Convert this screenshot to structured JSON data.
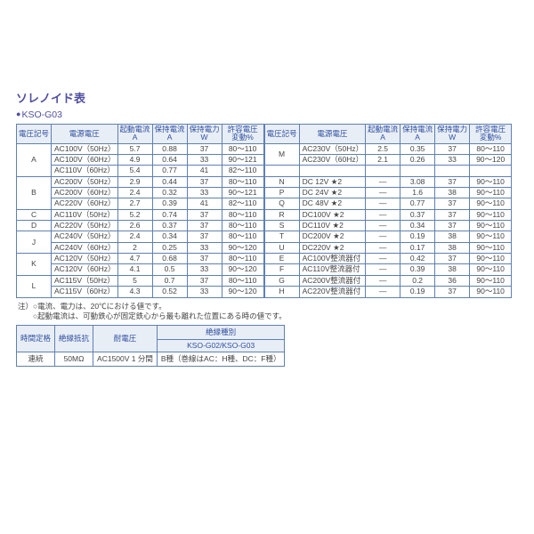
{
  "title": "ソレノイド表",
  "model": "KSO-G03",
  "headers": {
    "code": "電圧記号",
    "src": "電源電圧",
    "start": "起動電流\nA",
    "hold": "保持電流\nA",
    "power": "保持電力\nW",
    "range": "許容電圧\n変動%"
  },
  "left_rows": [
    {
      "code": "A",
      "span": 3,
      "src": "AC100V（50Hz）",
      "start": "5.7",
      "hold": "0.88",
      "power": "37",
      "range": "80～110"
    },
    {
      "src": "AC100V（60Hz）",
      "start": "4.9",
      "hold": "0.64",
      "power": "33",
      "range": "90～121"
    },
    {
      "src": "AC110V（60Hz）",
      "start": "5.4",
      "hold": "0.77",
      "power": "41",
      "range": "82～110"
    },
    {
      "code": "B",
      "span": 3,
      "src": "AC200V（50Hz）",
      "start": "2.9",
      "hold": "0.44",
      "power": "37",
      "range": "80～110"
    },
    {
      "src": "AC200V（60Hz）",
      "start": "2.4",
      "hold": "0.32",
      "power": "33",
      "range": "90～121"
    },
    {
      "src": "AC220V（60Hz）",
      "start": "2.7",
      "hold": "0.39",
      "power": "41",
      "range": "82～110"
    },
    {
      "code": "C",
      "span": 1,
      "src": "AC110V（50Hz）",
      "start": "5.2",
      "hold": "0.74",
      "power": "37",
      "range": "80～110"
    },
    {
      "code": "D",
      "span": 1,
      "src": "AC220V（50Hz）",
      "start": "2.6",
      "hold": "0.37",
      "power": "37",
      "range": "80～110"
    },
    {
      "code": "J",
      "span": 2,
      "src": "AC240V（50Hz）",
      "start": "2.4",
      "hold": "0.34",
      "power": "37",
      "range": "80～110"
    },
    {
      "src": "AC240V（60Hz）",
      "start": "2",
      "hold": "0.25",
      "power": "33",
      "range": "90～120"
    },
    {
      "code": "K",
      "span": 2,
      "src": "AC120V（50Hz）",
      "start": "4.7",
      "hold": "0.68",
      "power": "37",
      "range": "80～110"
    },
    {
      "src": "AC120V（60Hz）",
      "start": "4.1",
      "hold": "0.5",
      "power": "33",
      "range": "90～120"
    },
    {
      "code": "L",
      "span": 2,
      "src": "AC115V（50Hz）",
      "start": "5",
      "hold": "0.7",
      "power": "37",
      "range": "80～110"
    },
    {
      "src": "AC115V（60Hz）",
      "start": "4.3",
      "hold": "0.52",
      "power": "33",
      "range": "90～120"
    }
  ],
  "right_rows": [
    {
      "code": "M",
      "span": 2,
      "src": "AC230V（50Hz）",
      "start": "2.5",
      "hold": "0.35",
      "power": "37",
      "range": "80～110"
    },
    {
      "src": "AC230V（60Hz）",
      "start": "2.1",
      "hold": "0.26",
      "power": "33",
      "range": "90～120"
    },
    {
      "blank": true
    },
    {
      "code": "N",
      "span": 1,
      "src": "DC 12V ★2",
      "start": "—",
      "hold": "3.08",
      "power": "37",
      "range": "90～110"
    },
    {
      "code": "P",
      "span": 1,
      "src": "DC 24V ★2",
      "start": "—",
      "hold": "1.6",
      "power": "38",
      "range": "90～110"
    },
    {
      "code": "Q",
      "span": 1,
      "src": "DC 48V ★2",
      "start": "—",
      "hold": "0.77",
      "power": "37",
      "range": "90～110"
    },
    {
      "code": "R",
      "span": 1,
      "src": "DC100V ★2",
      "start": "—",
      "hold": "0.37",
      "power": "37",
      "range": "90～110"
    },
    {
      "code": "S",
      "span": 1,
      "src": "DC110V ★2",
      "start": "—",
      "hold": "0.34",
      "power": "37",
      "range": "90～110"
    },
    {
      "code": "T",
      "span": 1,
      "src": "DC200V ★2",
      "start": "—",
      "hold": "0.19",
      "power": "38",
      "range": "90～110"
    },
    {
      "code": "U",
      "span": 1,
      "src": "DC220V ★2",
      "start": "—",
      "hold": "0.17",
      "power": "38",
      "range": "90～110"
    },
    {
      "code": "E",
      "span": 1,
      "src": "AC100V整流器付",
      "start": "—",
      "hold": "0.42",
      "power": "37",
      "range": "90～110"
    },
    {
      "code": "F",
      "span": 1,
      "src": "AC110V整流器付",
      "start": "—",
      "hold": "0.39",
      "power": "38",
      "range": "90～110"
    },
    {
      "code": "G",
      "span": 1,
      "src": "AC200V整流器付",
      "start": "—",
      "hold": "0.2",
      "power": "36",
      "range": "90～110"
    },
    {
      "code": "H",
      "span": 1,
      "src": "AC220V整流器付",
      "start": "—",
      "hold": "0.19",
      "power": "37",
      "range": "90～110"
    }
  ],
  "notes_prefix": "注）",
  "notes": [
    "○電流、電力は、20℃における値です。",
    "○起動電流は、可動鉄心が固定鉄心から最も離れた位置にある時の値です。"
  ],
  "ins_table": {
    "headers": {
      "time": "時間定格",
      "res": "絶縁抵抗",
      "volt": "耐電圧",
      "class": "絶縁種別",
      "model": "KSO-G02/KSO-G03"
    },
    "row": {
      "time": "連続",
      "res": "50MΩ",
      "volt": "AC1500V 1 分間",
      "class_val": "B種（巻線はAC：H種、DC：F種）"
    }
  }
}
